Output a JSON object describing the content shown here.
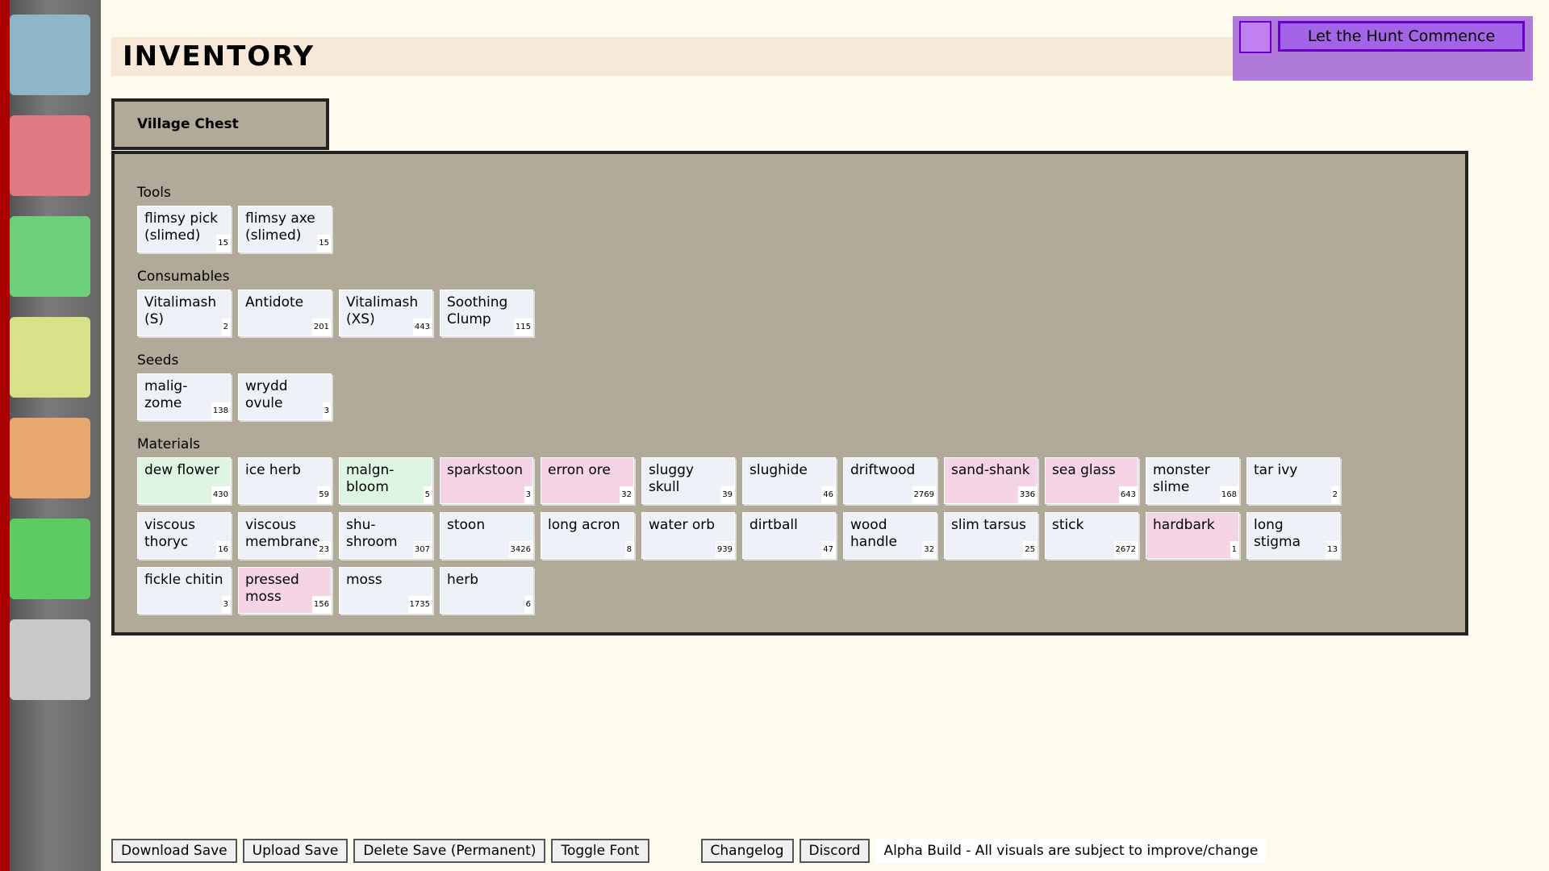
{
  "header": {
    "title": "INVENTORY"
  },
  "hunt_button": "Let the Hunt Commence",
  "tab": "Village Chest",
  "sections": [
    {
      "title": "Tools",
      "items": [
        {
          "name": "flimsy pick (slimed)",
          "count": "15",
          "color": "#eef2f8"
        },
        {
          "name": "flimsy axe (slimed)",
          "count": "15",
          "color": "#eef2f8"
        }
      ]
    },
    {
      "title": "Consumables",
      "items": [
        {
          "name": "Vitalimash (S)",
          "count": "2",
          "color": "#eef2f8"
        },
        {
          "name": "Antidote",
          "count": "201",
          "color": "#eef2f8"
        },
        {
          "name": "Vitalimash (XS)",
          "count": "443",
          "color": "#eef2f8"
        },
        {
          "name": "Soothing Clump",
          "count": "115",
          "color": "#eef2f8"
        }
      ]
    },
    {
      "title": "Seeds",
      "items": [
        {
          "name": "malig-zome",
          "count": "138",
          "color": "#eef2f8"
        },
        {
          "name": "wrydd ovule",
          "count": "3",
          "color": "#eef2f8"
        }
      ]
    },
    {
      "title": "Materials",
      "items": [
        {
          "name": "dew flower",
          "count": "430",
          "color": "#dff5e4"
        },
        {
          "name": "ice herb",
          "count": "59",
          "color": "#eef2f8"
        },
        {
          "name": "malgn-bloom",
          "count": "5",
          "color": "#dff5e4"
        },
        {
          "name": "sparkstoon",
          "count": "3",
          "color": "#f5d5e5"
        },
        {
          "name": "erron ore",
          "count": "32",
          "color": "#f5d5e5"
        },
        {
          "name": "sluggy skull",
          "count": "39",
          "color": "#eef2f8"
        },
        {
          "name": "slughide",
          "count": "46",
          "color": "#eef2f8"
        },
        {
          "name": "driftwood",
          "count": "2769",
          "color": "#eef2f8"
        },
        {
          "name": "sand-shank",
          "count": "336",
          "color": "#f5d5e5"
        },
        {
          "name": "sea glass",
          "count": "643",
          "color": "#f5d5e5"
        },
        {
          "name": "monster slime",
          "count": "168",
          "color": "#eef2f8"
        },
        {
          "name": "tar ivy",
          "count": "2",
          "color": "#eef2f8"
        },
        {
          "name": "viscous thoryc",
          "count": "16",
          "color": "#eef2f8"
        },
        {
          "name": "viscous membrane",
          "count": "23",
          "color": "#eef2f8"
        },
        {
          "name": "shu-shroom",
          "count": "307",
          "color": "#eef2f8"
        },
        {
          "name": "stoon",
          "count": "3426",
          "color": "#eef2f8"
        },
        {
          "name": "long acron",
          "count": "8",
          "color": "#eef2f8"
        },
        {
          "name": "water orb",
          "count": "939",
          "color": "#eef2f8"
        },
        {
          "name": "dirtball",
          "count": "47",
          "color": "#eef2f8"
        },
        {
          "name": "wood handle",
          "count": "32",
          "color": "#eef2f8"
        },
        {
          "name": "slim tarsus",
          "count": "25",
          "color": "#eef2f8"
        },
        {
          "name": "stick",
          "count": "2672",
          "color": "#eef2f8"
        },
        {
          "name": "hardbark",
          "count": "1",
          "color": "#f5d5e5"
        },
        {
          "name": "long stigma",
          "count": "13",
          "color": "#eef2f8"
        },
        {
          "name": "fickle chitin",
          "count": "3",
          "color": "#eef2f8"
        },
        {
          "name": "pressed moss",
          "count": "156",
          "color": "#f5d5e5"
        },
        {
          "name": "moss",
          "count": "1735",
          "color": "#eef2f8"
        },
        {
          "name": "herb",
          "count": "6",
          "color": "#eef2f8"
        }
      ]
    }
  ],
  "footer": {
    "buttons": [
      "Download Save",
      "Upload Save",
      "Delete Save (Permanent)",
      "Toggle Font"
    ],
    "links": [
      "Changelog",
      "Discord"
    ],
    "notice": "Alpha Build - All visuals are subject to improve/change"
  }
}
